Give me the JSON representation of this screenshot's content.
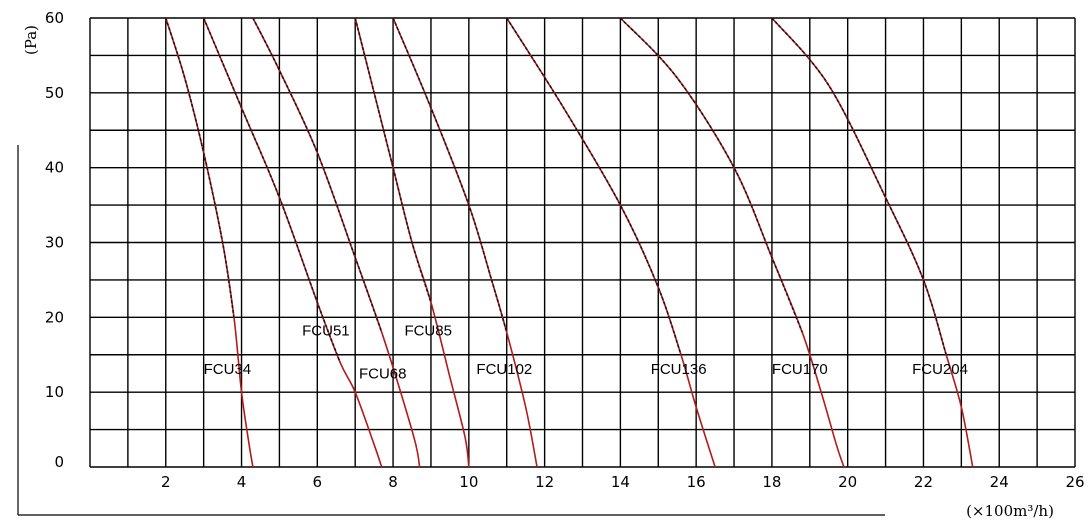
{
  "chart_data": {
    "type": "line",
    "title": "",
    "xlabel": "(×100m³/h)",
    "ylabel": "(Pa)",
    "xlim": [
      0,
      26
    ],
    "ylim": [
      0,
      60
    ],
    "x_ticks": [
      "2",
      "4",
      "6",
      "8",
      "10",
      "12",
      "14",
      "16",
      "18",
      "20",
      "22",
      "24",
      "26"
    ],
    "y_ticks": [
      "0",
      "10",
      "20",
      "30",
      "40",
      "50",
      "60"
    ],
    "grid": true,
    "series": [
      {
        "name": "FCU34",
        "x": [
          2.0,
          2.5,
          3.0,
          3.5,
          3.8,
          4.0,
          4.2,
          4.3
        ],
        "y": [
          60,
          52,
          42,
          30,
          20,
          10,
          3,
          0
        ]
      },
      {
        "name": "FCU51",
        "x": [
          3.0,
          4.0,
          5.0,
          6.0,
          6.6,
          7.0,
          7.5,
          7.7
        ],
        "y": [
          60,
          48,
          36,
          22,
          14,
          10,
          3,
          0
        ]
      },
      {
        "name": "FCU68",
        "x": [
          4.3,
          5.0,
          6.0,
          7.0,
          7.7,
          8.2,
          8.6,
          8.7
        ],
        "y": [
          60,
          53,
          42,
          28,
          18,
          10,
          3,
          0
        ]
      },
      {
        "name": "FCU85",
        "x": [
          7.0,
          7.5,
          8.0,
          8.5,
          9.0,
          9.5,
          9.9,
          10.0
        ],
        "y": [
          60,
          50,
          40,
          30,
          22,
          12,
          4,
          0
        ]
      },
      {
        "name": "FCU102",
        "x": [
          8.0,
          9.0,
          10.0,
          10.6,
          11.0,
          11.5,
          11.8
        ],
        "y": [
          60,
          48,
          35,
          25,
          18,
          8,
          0
        ]
      },
      {
        "name": "FCU136",
        "x": [
          11.0,
          12.5,
          14.0,
          15.0,
          15.6,
          16.0,
          16.5
        ],
        "y": [
          60,
          48,
          35,
          24,
          15,
          8,
          0
        ]
      },
      {
        "name": "FCU170",
        "x": [
          14.0,
          15.5,
          17.0,
          18.0,
          18.8,
          19.3,
          19.7,
          19.9
        ],
        "y": [
          60,
          52,
          40,
          28,
          18,
          10,
          3,
          0
        ]
      },
      {
        "name": "FCU204",
        "x": [
          18.0,
          19.5,
          21.0,
          22.0,
          22.6,
          23.0,
          23.3
        ],
        "y": [
          60,
          51,
          36,
          25,
          15,
          8,
          0
        ]
      }
    ],
    "label_anchors": [
      {
        "series": "FCU34",
        "x": 3.0,
        "y": 12.4
      },
      {
        "series": "FCU51",
        "x": 5.6,
        "y": 17.6
      },
      {
        "series": "FCU68",
        "x": 7.1,
        "y": 11.8
      },
      {
        "series": "FCU85",
        "x": 8.3,
        "y": 17.6
      },
      {
        "series": "FCU102",
        "x": 10.2,
        "y": 12.4
      },
      {
        "series": "FCU136",
        "x": 14.8,
        "y": 12.4
      },
      {
        "series": "FCU170",
        "x": 18.0,
        "y": 12.4
      },
      {
        "series": "FCU204",
        "x": 21.7,
        "y": 12.4
      }
    ],
    "colors": {
      "grid": "#000000",
      "curve_dark": "#2a0f0f",
      "curve_red": "#b31b1b"
    }
  }
}
